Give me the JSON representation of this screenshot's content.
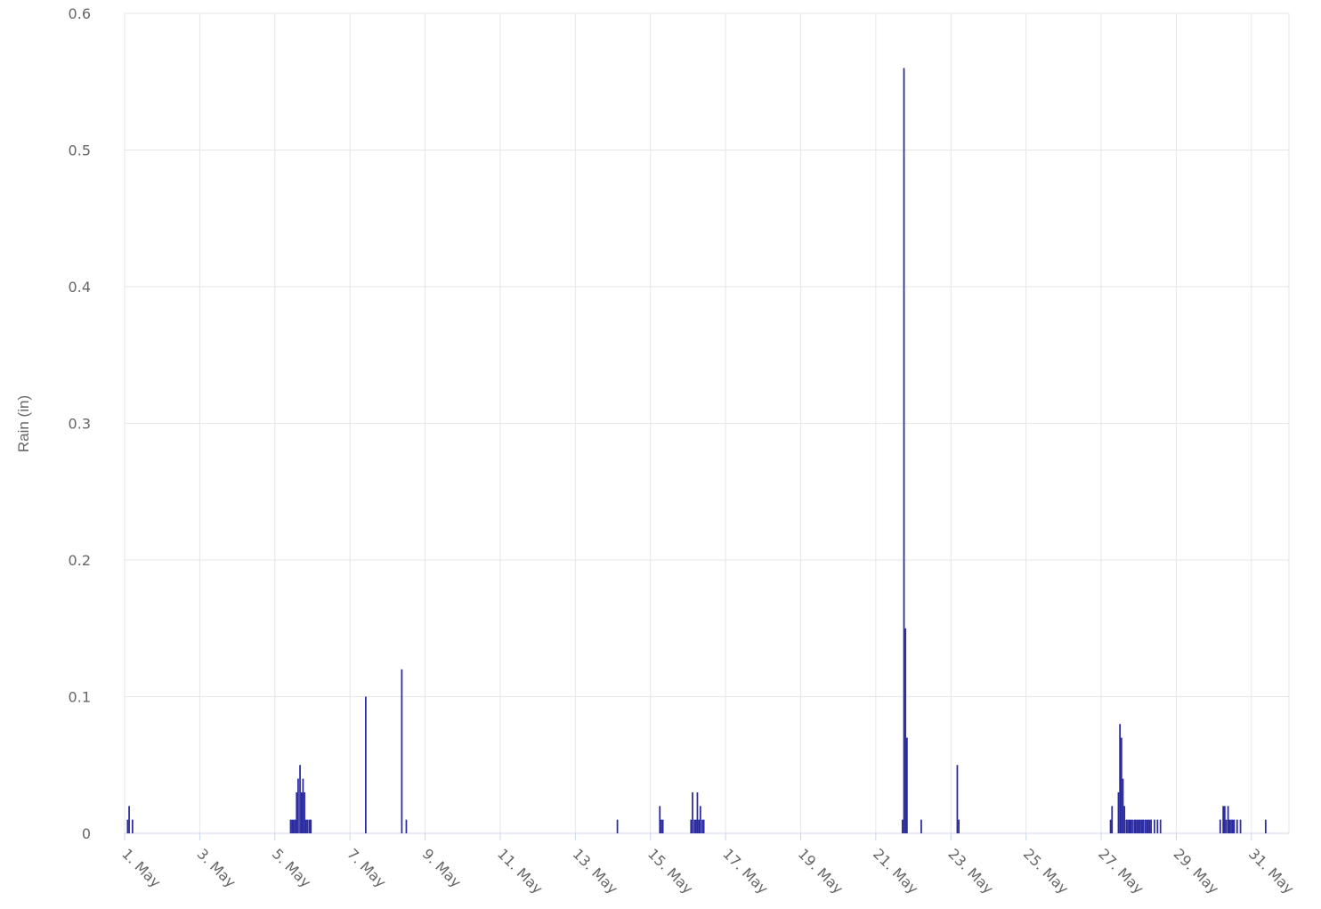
{
  "chart_data": {
    "type": "bar",
    "y_label": "Rain (in)",
    "x": [
      1.08,
      1.12,
      1.21,
      5.42,
      5.46,
      5.5,
      5.54,
      5.58,
      5.62,
      5.67,
      5.71,
      5.75,
      5.79,
      5.83,
      5.87,
      5.92,
      5.96,
      7.42,
      8.38,
      8.5,
      14.12,
      15.25,
      15.29,
      15.33,
      16.08,
      16.12,
      16.17,
      16.21,
      16.25,
      16.29,
      16.33,
      16.38,
      16.42,
      21.71,
      21.75,
      21.79,
      21.83,
      22.21,
      23.17,
      23.21,
      27.25,
      27.29,
      27.46,
      27.5,
      27.54,
      27.58,
      27.62,
      27.67,
      27.71,
      27.75,
      27.79,
      27.83,
      27.88,
      27.92,
      27.96,
      28.0,
      28.04,
      28.08,
      28.12,
      28.17,
      28.21,
      28.25,
      28.29,
      28.33,
      28.42,
      28.5,
      28.58,
      30.17,
      30.25,
      30.29,
      30.33,
      30.38,
      30.42,
      30.46,
      30.5,
      30.54,
      30.62,
      30.71,
      31.38
    ],
    "values": [
      0.01,
      0.02,
      0.01,
      0.01,
      0.01,
      0.01,
      0.01,
      0.03,
      0.04,
      0.05,
      0.03,
      0.04,
      0.03,
      0.01,
      0.01,
      0.01,
      0.01,
      0.1,
      0.12,
      0.01,
      0.01,
      0.02,
      0.01,
      0.01,
      0.01,
      0.03,
      0.01,
      0.01,
      0.03,
      0.01,
      0.02,
      0.01,
      0.01,
      0.01,
      0.56,
      0.15,
      0.07,
      0.01,
      0.05,
      0.01,
      0.01,
      0.02,
      0.03,
      0.08,
      0.07,
      0.04,
      0.02,
      0.01,
      0.01,
      0.01,
      0.01,
      0.01,
      0.01,
      0.01,
      0.01,
      0.01,
      0.01,
      0.01,
      0.01,
      0.01,
      0.01,
      0.01,
      0.01,
      0.01,
      0.01,
      0.01,
      0.01,
      0.01,
      0.02,
      0.02,
      0.01,
      0.02,
      0.01,
      0.01,
      0.01,
      0.01,
      0.01,
      0.01,
      0.01
    ],
    "color": "#2b2ba0",
    "xlim": [
      1,
      32
    ],
    "xticks": [
      {
        "value": 1,
        "label": "1. May"
      },
      {
        "value": 3,
        "label": "3. May"
      },
      {
        "value": 5,
        "label": "5. May"
      },
      {
        "value": 7,
        "label": "7. May"
      },
      {
        "value": 9,
        "label": "9. May"
      },
      {
        "value": 11,
        "label": "11. May"
      },
      {
        "value": 13,
        "label": "13. May"
      },
      {
        "value": 15,
        "label": "15. May"
      },
      {
        "value": 17,
        "label": "17. May"
      },
      {
        "value": 19,
        "label": "19. May"
      },
      {
        "value": 21,
        "label": "21. May"
      },
      {
        "value": 23,
        "label": "23. May"
      },
      {
        "value": 25,
        "label": "25. May"
      },
      {
        "value": 27,
        "label": "27. May"
      },
      {
        "value": 29,
        "label": "29. May"
      },
      {
        "value": 31,
        "label": "31. May"
      }
    ],
    "ylim": [
      0,
      0.6
    ],
    "yticks": [
      0,
      0.1,
      0.2,
      0.3,
      0.4,
      0.5,
      0.6
    ],
    "grid": true
  }
}
